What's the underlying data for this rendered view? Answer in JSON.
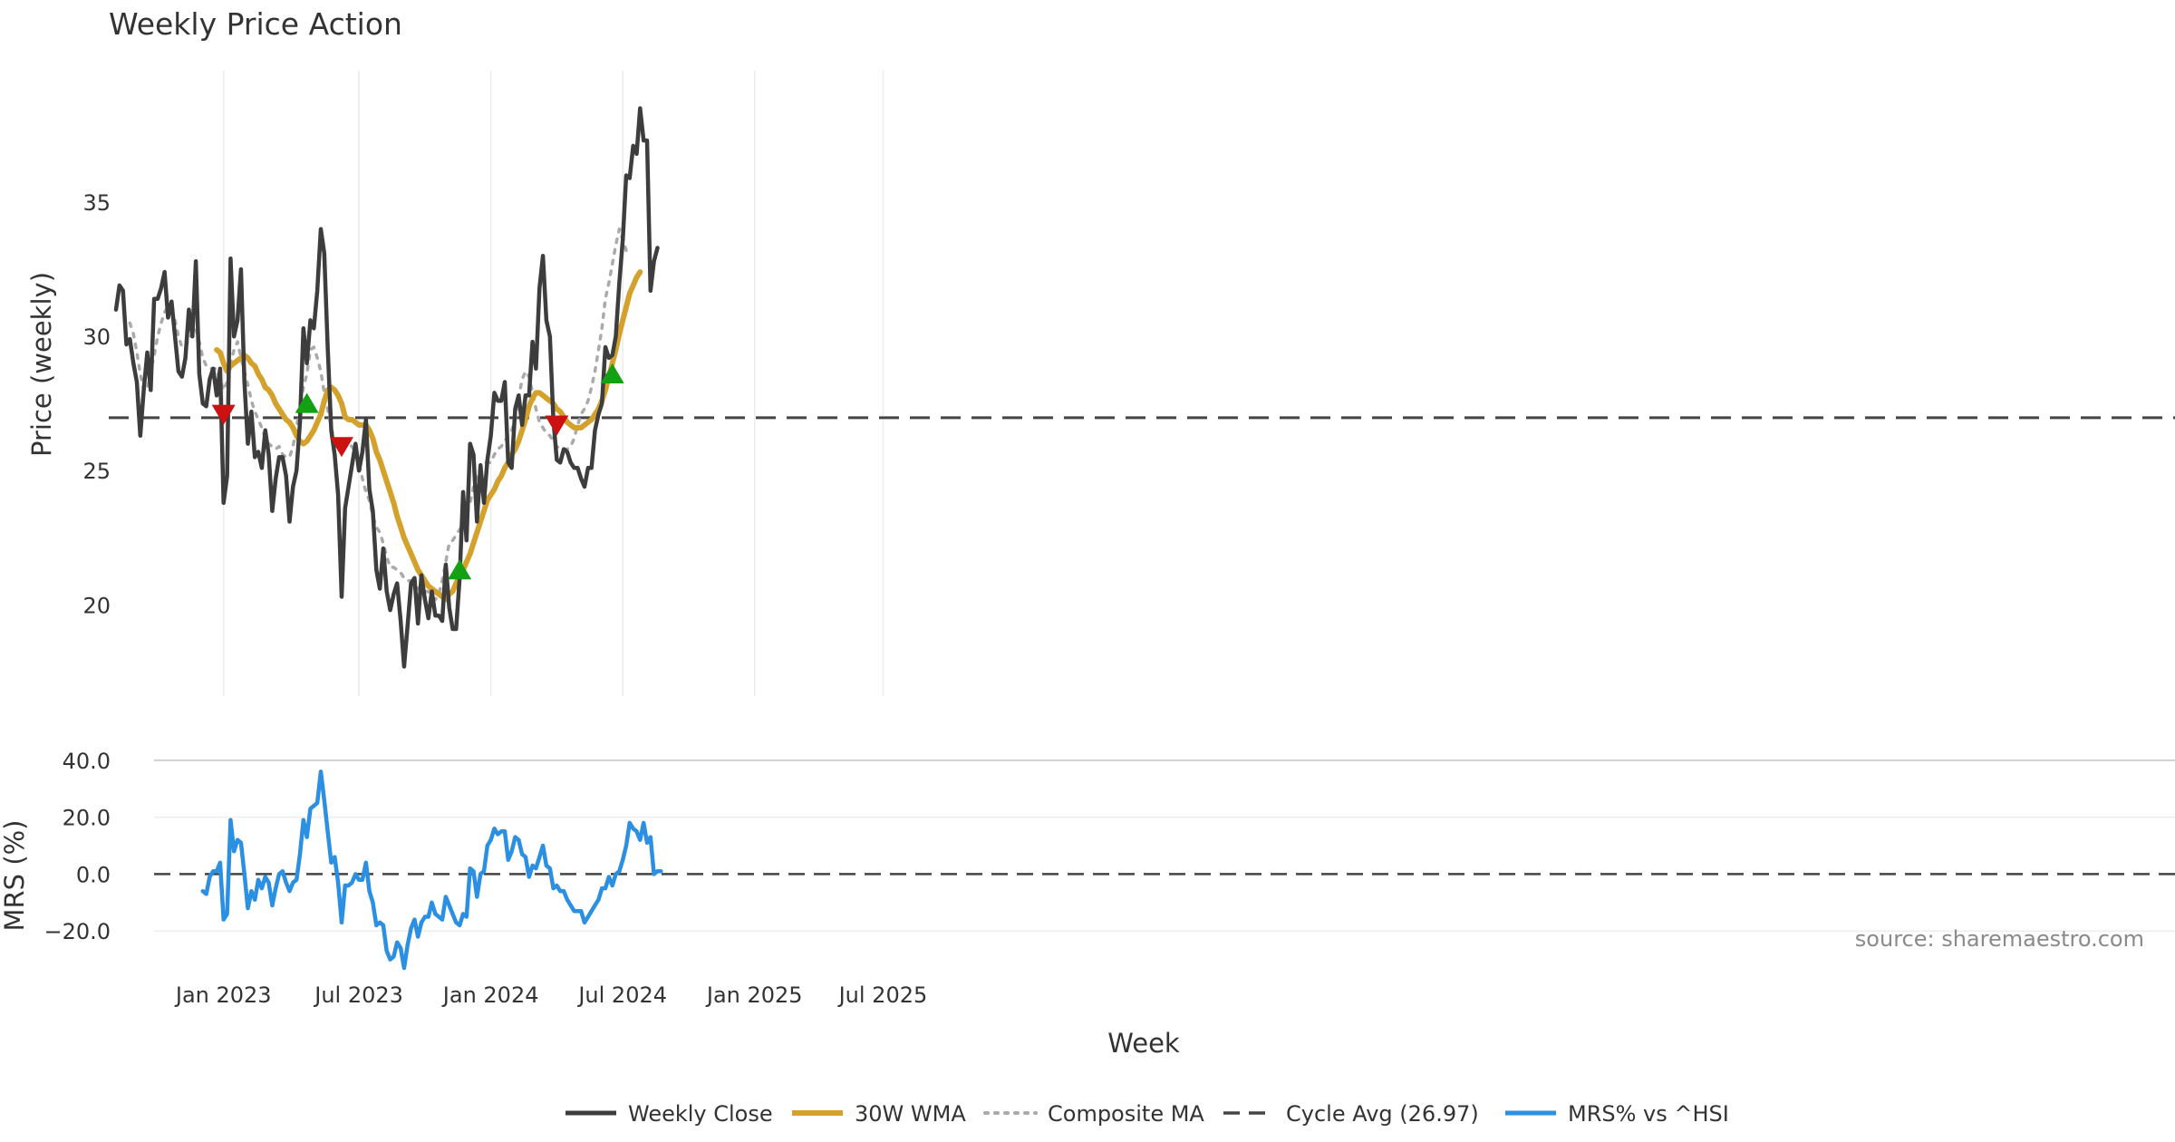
{
  "chart_data": {
    "title": "Weekly Price Action",
    "xlabel": "Week",
    "source": "source: sharemaestro.com",
    "x_ticks": [
      "Jan 2023",
      "Jul 2023",
      "Jan 2024",
      "Jul 2024",
      "Jan 2025",
      "Jul 2025"
    ],
    "price_panel": {
      "type": "line",
      "ylabel": "Price (weekly)",
      "ylim": [
        16.6,
        39.9
      ],
      "yticks": [
        "20",
        "25",
        "30",
        "35"
      ],
      "grid": "vertical",
      "cycle_avg": 26.97,
      "weekly_close": {
        "name": "Weekly Close",
        "color": "#3d3d3d",
        "start_week": 0,
        "values": [
          31.0,
          31.9,
          31.7,
          29.7,
          29.9,
          29.0,
          28.3,
          26.3,
          28.0,
          29.4,
          28.0,
          31.4,
          31.4,
          31.8,
          32.4,
          30.7,
          31.3,
          30.0,
          28.7,
          28.5,
          29.2,
          31.0,
          30.0,
          32.8,
          28.6,
          27.5,
          27.4,
          28.4,
          28.8,
          27.8,
          28.8,
          23.8,
          24.8,
          32.9,
          30.0,
          30.6,
          32.5,
          28.3,
          26.0,
          27.2,
          25.5,
          25.7,
          25.1,
          26.5,
          25.6,
          23.5,
          24.7,
          25.5,
          25.5,
          24.8,
          23.1,
          24.4,
          25.0,
          26.8,
          30.3,
          29.0,
          30.6,
          30.3,
          31.7,
          34.0,
          33.1,
          29.6,
          26.5,
          25.6,
          24.1,
          20.3,
          23.6,
          24.4,
          25.2,
          26.0,
          25.0,
          25.7,
          26.9,
          24.3,
          23.5,
          21.3,
          20.6,
          22.1,
          20.5,
          19.8,
          20.4,
          20.8,
          19.4,
          17.7,
          19.2,
          20.8,
          21.0,
          19.3,
          21.1,
          20.2,
          19.5,
          20.5,
          19.6,
          19.6,
          19.4,
          21.5,
          19.9,
          19.1,
          19.1,
          21.0,
          24.2,
          22.4,
          26.0,
          25.6,
          23.1,
          25.2,
          23.8,
          25.4,
          26.3,
          27.9,
          27.6,
          27.6,
          28.3,
          25.3,
          25.1,
          27.3,
          27.8,
          26.7,
          27.8,
          27.8,
          29.8,
          28.8,
          31.8,
          33.0,
          30.6,
          30.0,
          26.9,
          25.4,
          25.3,
          25.8,
          25.7,
          25.3,
          25.1,
          25.1,
          24.7,
          24.4,
          25.1,
          25.1,
          26.5,
          27.1,
          27.5,
          29.6,
          29.2,
          29.3,
          30.0,
          32.0,
          33.6,
          36.0,
          35.9,
          37.1,
          36.8,
          38.5,
          37.3,
          37.3,
          31.7,
          32.8,
          33.3
        ]
      },
      "wma_30w": {
        "name": "30W WMA",
        "color": "#d4a22c",
        "start_week": 29,
        "values": [
          29.5,
          29.4,
          29.0,
          28.7,
          28.9,
          29.0,
          29.1,
          29.2,
          29.3,
          29.2,
          29.0,
          28.9,
          28.6,
          28.4,
          28.1,
          28.0,
          27.8,
          27.5,
          27.3,
          27.1,
          26.9,
          26.8,
          26.6,
          26.3,
          26.1,
          26.0,
          26.1,
          26.3,
          26.5,
          26.8,
          27.1,
          27.6,
          28.0,
          28.1,
          28.0,
          27.8,
          27.5,
          27.0,
          26.9,
          26.9,
          26.8,
          26.7,
          26.7,
          26.7,
          26.5,
          26.2,
          25.7,
          25.4,
          25.0,
          24.6,
          24.2,
          23.8,
          23.3,
          22.9,
          22.5,
          22.2,
          21.9,
          21.6,
          21.3,
          21.1,
          20.9,
          20.7,
          20.6,
          20.5,
          20.4,
          20.3,
          20.2,
          20.4,
          20.5,
          20.8,
          21.1,
          21.3,
          21.6,
          21.9,
          22.3,
          22.7,
          23.1,
          23.5,
          23.9,
          24.1,
          24.3,
          24.6,
          24.8,
          25.1,
          25.3,
          25.6,
          25.8,
          26.1,
          26.5,
          26.9,
          27.4,
          27.7,
          27.9,
          27.9,
          27.8,
          27.7,
          27.6,
          27.5,
          27.3,
          27.2,
          27.0,
          26.8,
          26.7,
          26.6,
          26.6,
          26.6,
          26.7,
          26.8,
          26.9,
          27.1,
          27.3,
          27.6,
          28.0,
          28.5,
          29.0,
          29.5,
          30.1,
          30.6,
          31.1,
          31.6,
          31.9,
          32.2,
          32.4
        ]
      },
      "composite_ma": {
        "name": "Composite MA",
        "color": "#aaaaaa",
        "start_week": 4,
        "values": [
          30.5,
          30.1,
          29.4,
          28.6,
          28.0,
          28.0,
          28.7,
          29.3,
          30.0,
          30.5,
          30.9,
          31.1,
          31.0,
          30.6,
          30.0,
          29.6,
          29.6,
          29.9,
          30.1,
          30.3,
          29.8,
          29.2,
          28.9,
          28.8,
          28.8,
          28.8,
          28.4,
          28.0,
          28.3,
          29.0,
          29.5,
          29.8,
          29.2,
          28.7,
          28.2,
          27.6,
          27.2,
          26.9,
          26.6,
          26.2,
          26.0,
          25.9,
          25.8,
          25.9,
          25.6,
          25.5,
          25.5,
          25.9,
          26.6,
          27.4,
          28.1,
          28.6,
          29.5,
          29.6,
          29.2,
          28.7,
          27.9,
          27.3,
          26.6,
          26.1,
          26.0,
          25.9,
          25.9,
          26.0,
          25.9,
          25.7,
          25.3,
          24.7,
          24.2,
          23.9,
          23.3,
          22.9,
          22.7,
          22.3,
          21.8,
          21.4,
          21.4,
          21.3,
          21.2,
          21.0,
          20.9,
          20.9,
          20.7,
          20.6,
          20.6,
          20.5,
          20.5,
          20.3,
          20.2,
          20.4,
          20.9,
          21.6,
          22.3,
          22.4,
          22.6,
          22.8,
          23.0,
          23.4,
          23.8,
          24.4,
          24.8,
          25.1,
          25.3,
          25.3,
          25.3,
          25.6,
          25.8,
          25.9,
          26.1,
          26.3,
          26.5,
          26.9,
          27.7,
          28.4,
          28.7,
          28.5,
          27.9,
          27.3,
          26.8,
          26.6,
          26.4,
          26.3,
          26.1,
          25.9,
          25.8,
          25.8,
          25.8,
          25.9,
          26.2,
          26.7,
          27.1,
          27.3,
          27.6,
          28.1,
          28.7,
          29.5,
          30.3,
          31.4,
          32.0,
          32.7,
          33.4,
          34.0,
          33.6,
          33.2,
          33.1
        ]
      },
      "signals": [
        {
          "type": "sell",
          "week": 31,
          "price": 27.1,
          "color": "#cc1111"
        },
        {
          "type": "buy",
          "week": 55,
          "price": 27.5,
          "color": "#13a013"
        },
        {
          "type": "sell",
          "week": 65,
          "price": 25.9,
          "color": "#cc1111"
        },
        {
          "type": "buy",
          "week": 99,
          "price": 21.3,
          "color": "#13a013"
        },
        {
          "type": "sell",
          "week": 127,
          "price": 26.7,
          "color": "#cc1111"
        },
        {
          "type": "buy",
          "week": 143,
          "price": 28.6,
          "color": "#13a013"
        }
      ]
    },
    "mrs_panel": {
      "type": "line",
      "ylabel": "MRS (%)",
      "ylim": [
        -33,
        46
      ],
      "yticks": [
        "40.0",
        "20.0",
        "0.0",
        "−20.0"
      ],
      "series": {
        "name": "MRS% vs ^HSI",
        "color": "#2b8fe2",
        "start_week": 25,
        "values": [
          -6,
          -7,
          -1,
          1,
          1,
          4,
          -16,
          -14,
          19,
          8,
          12,
          11,
          0,
          -12,
          -6,
          -9,
          -2,
          -5,
          -1,
          -3,
          -11,
          -5,
          0,
          1,
          -3,
          -6,
          -3,
          -2,
          7,
          19,
          13,
          23,
          24,
          25,
          36,
          26,
          15,
          4,
          6,
          -3,
          -17,
          -4,
          -4,
          -3,
          0,
          -2,
          -2,
          4,
          -6,
          -10,
          -18,
          -17,
          -18,
          -27,
          -30,
          -29,
          -24,
          -26,
          -33,
          -25,
          -19,
          -16,
          -22,
          -17,
          -15,
          -15,
          -10,
          -14,
          -15,
          -16,
          -8,
          -11,
          -14,
          -17,
          -18,
          -14,
          -15,
          2,
          1,
          -8,
          0,
          1,
          10,
          12,
          16,
          14,
          15,
          15,
          5,
          8,
          13,
          12,
          7,
          6,
          -1,
          3,
          2,
          6,
          10,
          3,
          2,
          -5,
          -4,
          -6,
          -6,
          -9,
          -11,
          -13,
          -13,
          -13,
          -17,
          -15,
          -13,
          -11,
          -9,
          -5,
          -5,
          -1,
          -4,
          0,
          1,
          5,
          10,
          18,
          16,
          15,
          12,
          18,
          11,
          13,
          0,
          1,
          1
        ]
      }
    },
    "legend": {
      "position": "bottom-center",
      "items": [
        {
          "label": "Weekly Close",
          "style": "solid",
          "color": "#3d3d3d"
        },
        {
          "label": "30W WMA",
          "style": "solid-thick",
          "color": "#d4a22c"
        },
        {
          "label": "Composite MA",
          "style": "dotted",
          "color": "#aaaaaa"
        },
        {
          "label": "Cycle Avg (26.97)",
          "style": "dashed",
          "color": "#444444"
        },
        {
          "label": "MRS% vs ^HSI",
          "style": "solid",
          "color": "#2b8fe2"
        }
      ]
    }
  }
}
